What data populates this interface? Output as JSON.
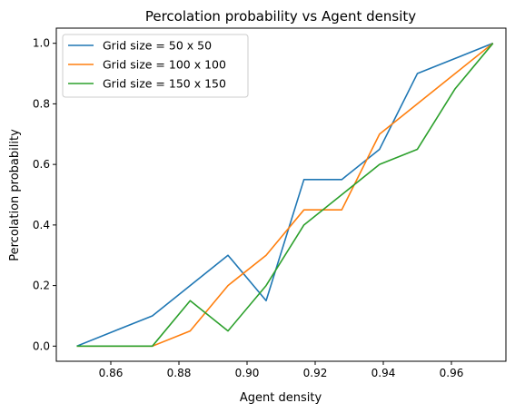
{
  "chart_data": {
    "type": "line",
    "title": "Percolation probability vs Agent density",
    "xlabel": "Agent density",
    "ylabel": "Percolation probability",
    "xlim": [
      0.844,
      0.976
    ],
    "ylim": [
      -0.05,
      1.05
    ],
    "xticks": [
      0.86,
      0.88,
      0.9,
      0.92,
      0.94,
      0.96
    ],
    "xtick_labels": [
      "0.86",
      "0.88",
      "0.90",
      "0.92",
      "0.94",
      "0.96"
    ],
    "yticks": [
      0.0,
      0.2,
      0.4,
      0.6,
      0.8,
      1.0
    ],
    "ytick_labels": [
      "0.0",
      "0.2",
      "0.4",
      "0.6",
      "0.8",
      "1.0"
    ],
    "grid": false,
    "legend_position": "top-left",
    "x": [
      0.85,
      0.8611,
      0.8722,
      0.8833,
      0.8944,
      0.9056,
      0.9167,
      0.9278,
      0.9389,
      0.95,
      0.9611,
      0.9722
    ],
    "series": [
      {
        "name": "Grid size = 50 x 50",
        "color": "#1f77b4",
        "values": [
          0.0,
          0.05,
          0.1,
          0.2,
          0.3,
          0.15,
          0.55,
          0.55,
          0.65,
          0.9,
          0.95,
          1.0
        ]
      },
      {
        "name": "Grid size = 100 x 100",
        "color": "#ff7f0e",
        "values": [
          0.0,
          0.0,
          0.0,
          0.05,
          0.2,
          0.3,
          0.45,
          0.45,
          0.7,
          0.8,
          0.9,
          1.0
        ]
      },
      {
        "name": "Grid size = 150 x 150",
        "color": "#2ca02c",
        "values": [
          0.0,
          0.0,
          0.0,
          0.15,
          0.05,
          0.2,
          0.4,
          0.5,
          0.6,
          0.65,
          0.85,
          1.0
        ]
      }
    ]
  }
}
